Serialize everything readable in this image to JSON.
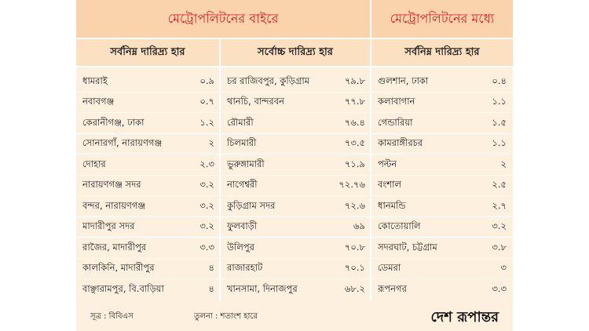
{
  "headers": {
    "outside": "মেট্রোপলিটনের বাইরে",
    "inside": "মেট্রোপলিটনের মধ্যে"
  },
  "subheaders": {
    "col1": "সর্বনিম্ন দারিদ্র্য হার",
    "col2": "সর্বোচ্চ দারিদ্র্য হার",
    "col3": "সর্বনিম্ন দারিদ্র্য হার"
  },
  "columns": {
    "lowest_outside": [
      {
        "name": "ধামরাই",
        "value": "০.৯"
      },
      {
        "name": "নবাবগঞ্জ",
        "value": "০.৭"
      },
      {
        "name": "কেরানীগঞ্জ, ঢাকা",
        "value": "১.২"
      },
      {
        "name": "সোনারগাঁ, নারায়ণগঞ্জ",
        "value": "২"
      },
      {
        "name": "দোহার",
        "value": "২.৩"
      },
      {
        "name": "নারায়ণগঞ্জ সদর",
        "value": "৩.২"
      },
      {
        "name": "বন্দর, নারায়ণগঞ্জ",
        "value": "৩.২"
      },
      {
        "name": "মাদারীপুর সদর",
        "value": "৩.২"
      },
      {
        "name": "রাজৈর, মাদারীপুর",
        "value": "৩.৩"
      },
      {
        "name": "কালকিনি, মাদারীপুর",
        "value": "৪"
      },
      {
        "name": "বাঞ্ছারামপুর, বি.বাড়িয়া",
        "value": "৪"
      }
    ],
    "highest_outside": [
      {
        "name": "চর রাজিবপুর, কুড়িগ্রাম",
        "value": "৭৯.৮"
      },
      {
        "name": "থানচি, বান্দরবন",
        "value": "৭৭.৮"
      },
      {
        "name": "রৌমারী",
        "value": "৭৬.৪"
      },
      {
        "name": "চিলমারী",
        "value": "৭৩.৫"
      },
      {
        "name": "ভুরুঙ্গামারী",
        "value": "৭১.৯"
      },
      {
        "name": "নাগেশ্বরী",
        "value": "৭২.৭৬"
      },
      {
        "name": "কুড়িগ্রাম সদর",
        "value": "৭২.৬"
      },
      {
        "name": "ফুলবাড়ী",
        "value": "৬৯"
      },
      {
        "name": "উলিপুর",
        "value": "৭০.৮"
      },
      {
        "name": "রাজারহাট",
        "value": "৭০.১"
      },
      {
        "name": "খানসামা, দিনাজপুর",
        "value": "৬৮.২"
      }
    ],
    "lowest_inside": [
      {
        "name": "গুলশান, ঢাকা",
        "value": "০.৪"
      },
      {
        "name": "কলাবাগান",
        "value": "১.১"
      },
      {
        "name": "গেন্ডারিয়া",
        "value": "১.৫"
      },
      {
        "name": "কামরাঙ্গীরচর",
        "value": "১.১"
      },
      {
        "name": "পল্টন",
        "value": "২"
      },
      {
        "name": "বংশাল",
        "value": "২.৫"
      },
      {
        "name": "ধানমন্ডি",
        "value": "২.৭"
      },
      {
        "name": "কোতোয়ালি",
        "value": "৩.২"
      },
      {
        "name": "সদরঘাট, চট্টগ্রাম",
        "value": "৩.৮"
      },
      {
        "name": "ডেমরা",
        "value": "৩"
      },
      {
        "name": "রূপনগর",
        "value": "৩.৩"
      }
    ]
  },
  "footer": {
    "source": "সূত্র : বিবিএস",
    "comparison": "তুলনা : শতাংশ হারে",
    "brand": "দেশ রূপান্তর"
  },
  "colors": {
    "header_text": "#d11f26",
    "header_band": "#fad2ab",
    "body_bg": "#fdf0de"
  }
}
